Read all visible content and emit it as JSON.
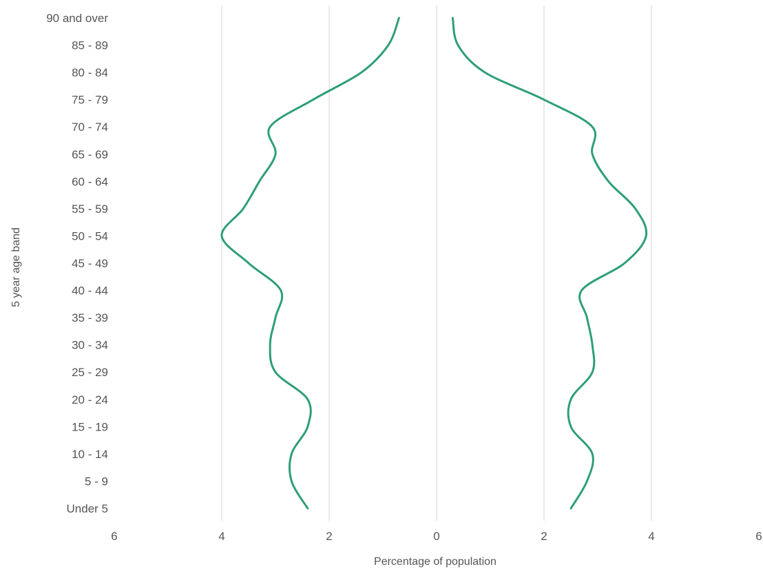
{
  "chart_data": {
    "type": "line",
    "title": "",
    "xlabel": "Percentage of population",
    "ylabel": "5 year age band",
    "xlim": [
      -6,
      6
    ],
    "x_ticks": [
      -6,
      -4,
      -2,
      0,
      2,
      4,
      6
    ],
    "x_tick_labels": [
      "6",
      "4",
      "2",
      "0",
      "2",
      "4",
      "6"
    ],
    "grid": true,
    "legend": "none",
    "line_color": "#2e9e78",
    "categories": [
      "Under 5",
      "5 - 9",
      "10 - 14",
      "15 - 19",
      "20 - 24",
      "25 - 29",
      "30 - 34",
      "35 - 39",
      "40 - 44",
      "45 - 49",
      "50 - 54",
      "55 - 59",
      "60 - 64",
      "65 - 69",
      "70 - 74",
      "75 - 79",
      "80 - 84",
      "85 - 89",
      "90 and over"
    ],
    "series": [
      {
        "side": "left",
        "values": [
          2.4,
          2.7,
          2.7,
          2.4,
          2.4,
          3.0,
          3.1,
          3.0,
          2.9,
          3.5,
          4.0,
          3.6,
          3.3,
          3.0,
          3.1,
          2.3,
          1.4,
          0.9,
          0.7
        ]
      },
      {
        "side": "right",
        "values": [
          2.5,
          2.8,
          2.9,
          2.5,
          2.5,
          2.9,
          2.9,
          2.8,
          2.7,
          3.5,
          3.9,
          3.7,
          3.2,
          2.9,
          2.9,
          2.0,
          0.9,
          0.4,
          0.3
        ]
      }
    ]
  }
}
